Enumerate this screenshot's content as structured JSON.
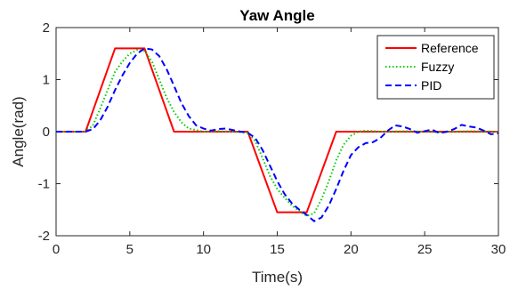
{
  "chart_data": {
    "type": "line",
    "title": "Yaw Angle",
    "xlabel": "Time(s)",
    "ylabel": "Angle(rad)",
    "xlim": [
      0,
      30
    ],
    "ylim": [
      -2,
      2
    ],
    "xticks": [
      0,
      5,
      10,
      15,
      20,
      25,
      30
    ],
    "yticks": [
      -2,
      -1,
      0,
      1,
      2
    ],
    "grid": false,
    "legend_position": "top-right",
    "series": [
      {
        "name": "Reference",
        "color": "#ff0000",
        "style": "solid",
        "x": [
          0,
          2,
          4,
          6,
          8,
          13,
          15,
          17,
          19,
          30
        ],
        "y": [
          0,
          0,
          1.6,
          1.6,
          0,
          0,
          -1.55,
          -1.55,
          0,
          0
        ]
      },
      {
        "name": "Fuzzy",
        "color": "#00cc00",
        "style": "dotted",
        "x": [
          0,
          2,
          2.5,
          3,
          3.5,
          4,
          4.5,
          5,
          5.5,
          6,
          6.5,
          7,
          7.5,
          8,
          8.5,
          9,
          10,
          11,
          12,
          13,
          13.5,
          14,
          14.5,
          15,
          15.5,
          16,
          16.5,
          17,
          17.5,
          18,
          18.5,
          19,
          19.5,
          20,
          20.5,
          21,
          22,
          24,
          26,
          28,
          30
        ],
        "y": [
          0,
          0,
          0.12,
          0.45,
          0.8,
          1.15,
          1.35,
          1.5,
          1.57,
          1.55,
          1.35,
          1.0,
          0.65,
          0.38,
          0.18,
          0.06,
          0.0,
          0.01,
          0.0,
          -0.02,
          -0.18,
          -0.5,
          -0.85,
          -1.1,
          -1.27,
          -1.42,
          -1.53,
          -1.62,
          -1.57,
          -1.3,
          -0.95,
          -0.55,
          -0.25,
          -0.08,
          0.0,
          0.02,
          0.0,
          0.01,
          -0.01,
          0.01,
          0.0
        ]
      },
      {
        "name": "PID",
        "color": "#0000ff",
        "style": "dashed",
        "x": [
          0,
          2,
          2.5,
          3,
          3.5,
          4,
          4.5,
          5,
          5.5,
          6,
          6.5,
          7,
          7.5,
          8,
          8.5,
          9,
          9.5,
          10,
          10.5,
          11,
          11.5,
          12,
          12.5,
          13,
          13.5,
          14,
          14.5,
          15,
          15.5,
          16,
          16.5,
          17,
          17.5,
          18,
          18.5,
          19,
          19.5,
          20,
          20.5,
          21,
          21.5,
          22,
          22.5,
          23,
          23.5,
          24,
          24.5,
          25,
          25.5,
          26,
          26.5,
          27,
          27.5,
          28,
          28.5,
          29,
          29.5,
          30
        ],
        "y": [
          0,
          0,
          0.05,
          0.22,
          0.48,
          0.8,
          1.08,
          1.32,
          1.5,
          1.6,
          1.58,
          1.45,
          1.2,
          0.88,
          0.55,
          0.3,
          0.12,
          0.06,
          0.02,
          0.05,
          0.06,
          0.03,
          0.0,
          -0.02,
          -0.12,
          -0.35,
          -0.65,
          -0.95,
          -1.2,
          -1.38,
          -1.5,
          -1.6,
          -1.72,
          -1.65,
          -1.42,
          -1.1,
          -0.75,
          -0.45,
          -0.3,
          -0.22,
          -0.2,
          -0.12,
          0.02,
          0.12,
          0.1,
          0.05,
          -0.02,
          0.01,
          0.04,
          -0.03,
          0.0,
          0.05,
          0.13,
          0.1,
          0.08,
          0.02,
          -0.05,
          -0.03
        ]
      }
    ]
  }
}
